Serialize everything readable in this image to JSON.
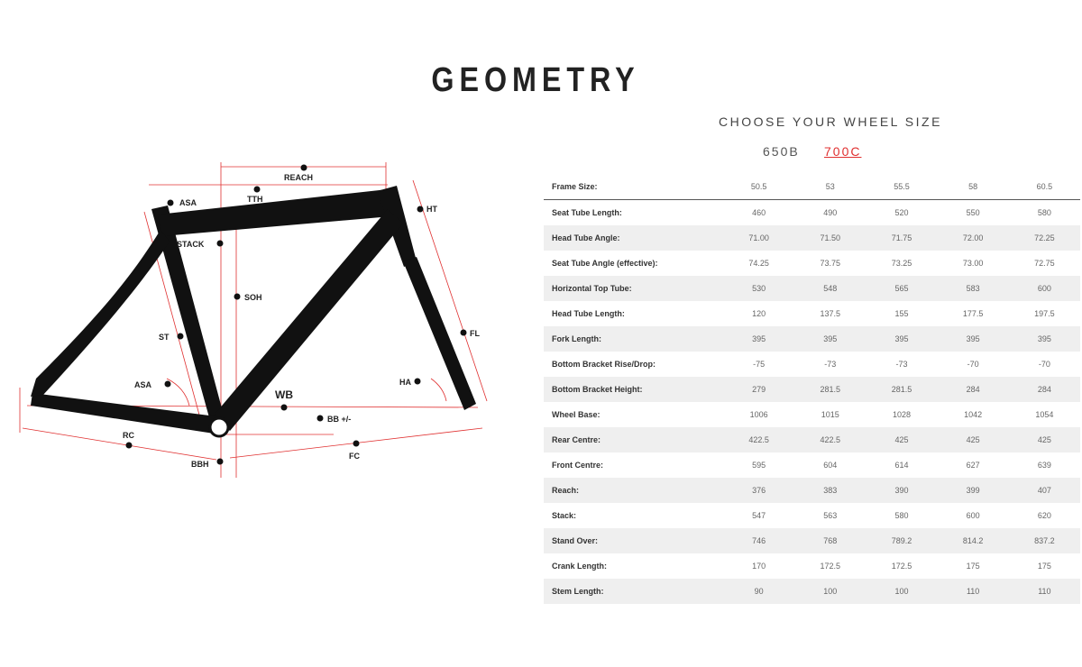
{
  "title": "GEOMETRY",
  "wheel_chooser": {
    "label": "CHOOSE YOUR WHEEL SIZE",
    "options": [
      "650B",
      "700C"
    ],
    "selected": "700C",
    "accent": "#e03030"
  },
  "diagram": {
    "labels": {
      "reach": "REACH",
      "tth": "TTH",
      "asa_top": "ASA",
      "ht": "HT",
      "stack": "STACK",
      "soh": "SOH",
      "st": "ST",
      "fl": "FL",
      "asa": "ASA",
      "ha": "HA",
      "wb": "WB",
      "bb": "BB +/-",
      "rc": "RC",
      "fc": "FC",
      "bbh": "BBH"
    }
  },
  "table": {
    "header": {
      "label": "Frame Size:",
      "values": [
        "50.5",
        "53",
        "55.5",
        "58",
        "60.5"
      ]
    },
    "rows": [
      {
        "label": "Seat Tube Length:",
        "values": [
          "460",
          "490",
          "520",
          "550",
          "580"
        ]
      },
      {
        "label": "Head Tube Angle:",
        "values": [
          "71.00",
          "71.50",
          "71.75",
          "72.00",
          "72.25"
        ]
      },
      {
        "label": "Seat Tube Angle (effective):",
        "values": [
          "74.25",
          "73.75",
          "73.25",
          "73.00",
          "72.75"
        ]
      },
      {
        "label": "Horizontal Top Tube:",
        "values": [
          "530",
          "548",
          "565",
          "583",
          "600"
        ]
      },
      {
        "label": "Head Tube Length:",
        "values": [
          "120",
          "137.5",
          "155",
          "177.5",
          "197.5"
        ]
      },
      {
        "label": "Fork Length:",
        "values": [
          "395",
          "395",
          "395",
          "395",
          "395"
        ]
      },
      {
        "label": "Bottom Bracket Rise/Drop:",
        "values": [
          "-75",
          "-73",
          "-73",
          "-70",
          "-70"
        ]
      },
      {
        "label": "Bottom Bracket Height:",
        "values": [
          "279",
          "281.5",
          "281.5",
          "284",
          "284"
        ]
      },
      {
        "label": "Wheel Base:",
        "values": [
          "1006",
          "1015",
          "1028",
          "1042",
          "1054"
        ]
      },
      {
        "label": "Rear Centre:",
        "values": [
          "422.5",
          "422.5",
          "425",
          "425",
          "425"
        ]
      },
      {
        "label": "Front Centre:",
        "values": [
          "595",
          "604",
          "614",
          "627",
          "639"
        ]
      },
      {
        "label": "Reach:",
        "values": [
          "376",
          "383",
          "390",
          "399",
          "407"
        ]
      },
      {
        "label": "Stack:",
        "values": [
          "547",
          "563",
          "580",
          "600",
          "620"
        ]
      },
      {
        "label": "Stand Over:",
        "values": [
          "746",
          "768",
          "789.2",
          "814.2",
          "837.2"
        ]
      },
      {
        "label": "Crank Length:",
        "values": [
          "170",
          "172.5",
          "172.5",
          "175",
          "175"
        ]
      },
      {
        "label": "Stem Length:",
        "values": [
          "90",
          "100",
          "100",
          "110",
          "110"
        ]
      }
    ]
  }
}
